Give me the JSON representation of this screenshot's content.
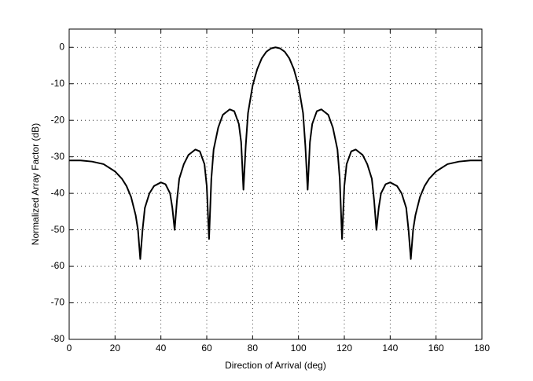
{
  "chart_data": {
    "type": "line",
    "xlabel": "Direction of Arrival (deg)",
    "ylabel": "Normalized Array Factor (dB)",
    "color": "#000000",
    "grid": true,
    "xlim": [
      0,
      180
    ],
    "xticks": [
      0,
      20,
      40,
      60,
      80,
      100,
      120,
      140,
      160,
      180
    ],
    "ylim": [
      -80,
      5
    ],
    "yticks": [
      -80,
      -70,
      -60,
      -50,
      -40,
      -30,
      -20,
      -10,
      0
    ],
    "x": [
      0,
      5,
      10,
      15,
      20,
      23,
      25,
      27,
      29,
      30,
      31,
      32,
      33,
      35,
      37,
      40,
      42,
      44,
      45,
      46,
      47,
      48,
      50,
      52,
      55,
      57,
      59,
      60,
      61,
      62,
      63,
      65,
      67,
      70,
      72,
      74,
      75,
      76,
      77,
      78,
      80,
      82,
      84,
      86,
      88,
      90,
      92,
      94,
      96,
      98,
      100,
      102,
      103,
      104,
      105,
      106,
      108,
      110,
      113,
      115,
      117,
      118,
      119,
      120,
      121,
      123,
      125,
      128,
      130,
      132,
      133,
      134,
      135,
      136,
      138,
      140,
      143,
      145,
      147,
      148,
      149,
      150,
      151,
      153,
      155,
      157,
      160,
      165,
      170,
      175,
      180
    ],
    "values": [
      -31,
      -31,
      -31.3,
      -32,
      -34,
      -36,
      -38,
      -41,
      -46,
      -50,
      -58,
      -50,
      -44,
      -40,
      -38,
      -37,
      -37.5,
      -40,
      -44,
      -50,
      -42,
      -36,
      -32,
      -29.5,
      -28,
      -28.5,
      -32,
      -38,
      -52.5,
      -36,
      -28,
      -22,
      -18.5,
      -17,
      -17.5,
      -21,
      -26,
      -39,
      -27,
      -18,
      -10.5,
      -6,
      -3,
      -1.2,
      -0.3,
      0,
      -0.3,
      -1.2,
      -3,
      -6,
      -10.5,
      -18,
      -27,
      -39,
      -26,
      -21,
      -17.5,
      -17,
      -18.5,
      -22,
      -28,
      -36,
      -52.5,
      -38,
      -32,
      -28.5,
      -28,
      -29.5,
      -32,
      -36,
      -42,
      -50,
      -44,
      -40,
      -37.5,
      -37,
      -38,
      -40,
      -44,
      -50,
      -58,
      -50,
      -46,
      -41,
      -38,
      -36,
      -34,
      -32,
      -31.3,
      -31,
      -31
    ]
  }
}
